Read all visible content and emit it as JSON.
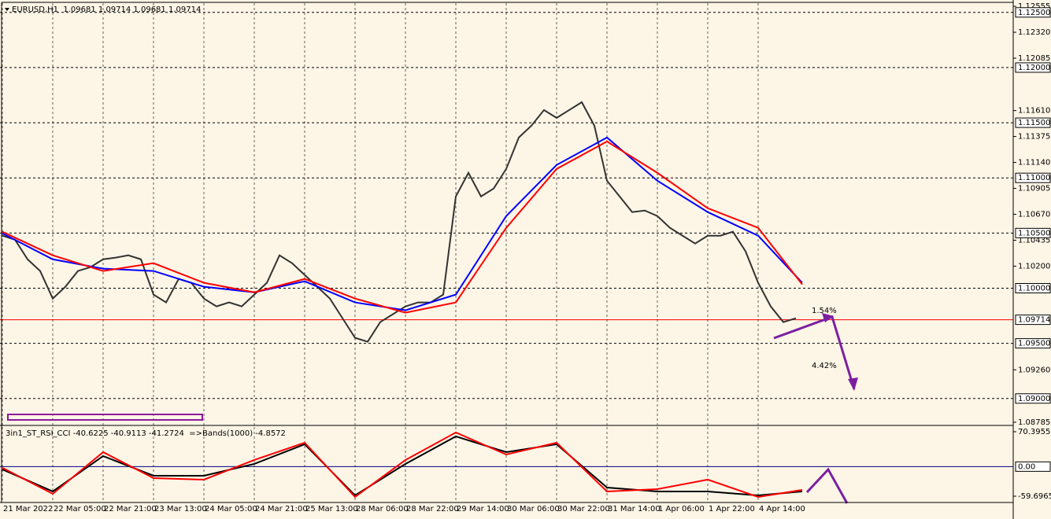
{
  "chart_data": [
    {
      "type": "line",
      "title": "EURUSD,H1  1.09681 1.09714 1.09681 1.09714",
      "xlim": [
        -0.75,
        320.75
      ],
      "ylim": [
        1.08756,
        1.12584
      ],
      "yticks": [
        1.12555,
        {
          "value": 1.1232,
          "label": "1.12320"
        },
        {
          "value": 1.12085,
          "label": "1.12085"
        },
        {
          "value": 1.1161,
          "label": "1.11610"
        },
        1.11375,
        {
          "value": 1.1114,
          "label": "1.11140"
        },
        1.10905,
        {
          "value": 1.1067,
          "label": "1.10670"
        },
        1.10435,
        {
          "value": 1.102,
          "label": "1.10200"
        },
        {
          "value": 1.0926,
          "label": "1.09260"
        },
        1.08785
      ],
      "levels": [
        {
          "value": 1.125,
          "label": "1.12500"
        },
        {
          "value": 1.12,
          "label": "1.12000"
        },
        {
          "value": 1.115,
          "label": "1.11500"
        },
        {
          "value": 1.11,
          "label": "1.11000"
        },
        {
          "value": 1.105,
          "label": "1.10500"
        },
        {
          "value": 1.1,
          "label": "1.10000"
        },
        {
          "value": 1.095,
          "label": "1.09500"
        },
        {
          "value": 1.09,
          "label": "1.09000"
        }
      ],
      "current_price": 1.09714,
      "current_color": "#ff0000",
      "annotations": [
        {
          "text": "1.54%",
          "color": "#ff0000"
        },
        {
          "text": "4.42%",
          "color": "#ff0000"
        }
      ],
      "series": [
        {
          "color": "#333333",
          "x": [
            0,
            4,
            8,
            12,
            16,
            20,
            24,
            28,
            32,
            36,
            40,
            44,
            48,
            52,
            56,
            60,
            64,
            68,
            72,
            76,
            80,
            84,
            88,
            92,
            96,
            100,
            104,
            108,
            112,
            116,
            120,
            124,
            128,
            132,
            136,
            140,
            144,
            148,
            152,
            156,
            160,
            164,
            168,
            172,
            176,
            180,
            184,
            188,
            192,
            196,
            200,
            204,
            208,
            212,
            216,
            220,
            224,
            228,
            232,
            236,
            240,
            244,
            248,
            252
          ],
          "values": [
            1.10476,
            1.1044,
            1.10262,
            1.10156,
            1.09906,
            1.10013,
            1.10156,
            1.10191,
            1.10262,
            1.10277,
            1.10298,
            1.10262,
            1.09942,
            1.09871,
            1.10084,
            1.10049,
            1.09906,
            1.09835,
            1.09871,
            1.09835,
            1.09942,
            1.10049,
            1.10298,
            1.10227,
            1.1012,
            1.10013,
            1.09906,
            1.09728,
            1.0955,
            1.09515,
            1.09693,
            1.09764,
            1.09835,
            1.09871,
            1.09871,
            1.09942,
            1.10832,
            1.11046,
            1.10832,
            1.10903,
            1.11081,
            1.11366,
            1.11473,
            1.11615,
            1.11544,
            1.11615,
            1.11686,
            1.11473,
            1.10974,
            1.10832,
            1.1069,
            1.10704,
            1.10654,
            1.10547,
            1.10476,
            1.10405,
            1.10476,
            1.10476,
            1.10512,
            1.10334,
            1.10049,
            1.09835,
            1.09693,
            1.09728
          ]
        },
        {
          "color": "#0000ff",
          "x": [
            0,
            16,
            32,
            48,
            64,
            80,
            96,
            112,
            128,
            144,
            160,
            176,
            192,
            208,
            224,
            240,
            254
          ],
          "values": [
            1.10497,
            1.10262,
            1.10177,
            1.10156,
            1.10013,
            1.09963,
            1.10063,
            1.09871,
            1.098,
            1.09942,
            1.10654,
            1.11117,
            1.11366,
            1.10974,
            1.1069,
            1.10476,
            1.10049
          ]
        },
        {
          "color": "#ff0000",
          "x": [
            0,
            16,
            32,
            48,
            64,
            80,
            96,
            112,
            128,
            144,
            160,
            176,
            192,
            208,
            224,
            240,
            254
          ],
          "values": [
            1.10512,
            1.10298,
            1.10156,
            1.10227,
            1.10049,
            1.09963,
            1.10084,
            1.09906,
            1.09778,
            1.09871,
            1.10547,
            1.11081,
            1.1133,
            1.11046,
            1.10725,
            1.10547,
            1.10034
          ]
        }
      ]
    },
    {
      "type": "line",
      "title": "3in1_ST_RSI_CCI -40.6225 -40.9113 -41.2724  =>Bands(1000) -4.8572",
      "xlim": [
        -0.75,
        320.75
      ],
      "ylim": [
        -70.8,
        79.9
      ],
      "yticks": [
        70.3955,
        -59.6965
      ],
      "levels": [
        {
          "value": 0,
          "label": "0.00"
        }
      ],
      "xticks": [
        {
          "value": 0,
          "label": "21 Mar 2022"
        },
        {
          "value": 16,
          "label": "22 Mar 05:00"
        },
        {
          "value": 32,
          "label": "22 Mar 21:00"
        },
        {
          "value": 48,
          "label": "23 Mar 13:00"
        },
        {
          "value": 64,
          "label": "24 Mar 05:00"
        },
        {
          "value": 80,
          "label": "24 Mar 21:00"
        },
        {
          "value": 96,
          "label": "25 Mar 13:00"
        },
        {
          "value": 112,
          "label": "28 Mar 06:00"
        },
        {
          "value": 128,
          "label": "28 Mar 22:00"
        },
        {
          "value": 144,
          "label": "29 Mar 14:00"
        },
        {
          "value": 160,
          "label": "30 Mar 06:00"
        },
        {
          "value": 176,
          "label": "30 Mar 22:00"
        },
        {
          "value": 192,
          "label": "31 Mar 14:00"
        },
        {
          "value": 208,
          "label": "1 Apr 06:00"
        },
        {
          "value": 224,
          "label": "1 Apr 22:00"
        },
        {
          "value": 240,
          "label": "4 Apr 14:00"
        }
      ],
      "series": [
        {
          "color": "#000000",
          "x": [
            0,
            16,
            32,
            48,
            64,
            80,
            96,
            112,
            128,
            144,
            160,
            176,
            192,
            208,
            224,
            240,
            254
          ],
          "values": [
            -5.7,
            -50.1,
            21.3,
            -18.4,
            -18.4,
            5.4,
            45.1,
            -58.1,
            5.4,
            60.9,
            29.2,
            45.1,
            -42.2,
            -50.1,
            -50.1,
            -58.1,
            -50.1
          ]
        },
        {
          "color": "#ff0000",
          "x": [
            0,
            16,
            32,
            48,
            64,
            80,
            96,
            112,
            128,
            144,
            160,
            176,
            192,
            208,
            224,
            240,
            254
          ],
          "values": [
            -2.5,
            -54.9,
            29.2,
            -23.2,
            -26.3,
            13.3,
            48.2,
            -61.2,
            13.3,
            68.9,
            24.4,
            48.2,
            -50.1,
            -45.4,
            -26.3,
            -61.2,
            -47.0
          ]
        }
      ]
    }
  ]
}
